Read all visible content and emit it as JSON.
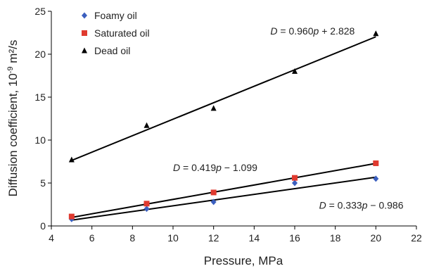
{
  "chart_data": {
    "type": "scatter",
    "xlabel": "Pressure, MPa",
    "ylabel_main": "Diffusion coefficient, 10",
    "ylabel_sup": "-9",
    "ylabel_unit": " m²/s",
    "xlim": [
      4,
      22
    ],
    "ylim": [
      0,
      25
    ],
    "xticks": [
      4,
      6,
      8,
      10,
      12,
      14,
      16,
      18,
      20,
      22
    ],
    "yticks": [
      0,
      5,
      10,
      15,
      20,
      25
    ],
    "grid": false,
    "legend_position": "top-left",
    "series": [
      {
        "name": "Foamy oil",
        "marker": "diamond",
        "color": "#3b5fbf",
        "x": [
          5,
          8.7,
          12,
          16,
          20
        ],
        "y": [
          0.8,
          2.0,
          2.8,
          5.0,
          5.5
        ],
        "fit": {
          "slope": 0.333,
          "intercept": -0.986,
          "x_range": [
            5,
            20
          ]
        }
      },
      {
        "name": "Saturated  oil",
        "marker": "square",
        "color": "#e03a2f",
        "x": [
          5,
          8.7,
          12,
          16,
          20
        ],
        "y": [
          1.1,
          2.6,
          3.9,
          5.6,
          7.3
        ],
        "fit": {
          "slope": 0.419,
          "intercept": -1.099,
          "x_range": [
            5,
            20
          ]
        }
      },
      {
        "name": "Dead oil",
        "marker": "triangle",
        "color": "#000000",
        "x": [
          5,
          8.7,
          12,
          16,
          20
        ],
        "y": [
          7.7,
          11.7,
          13.7,
          18.0,
          22.4
        ],
        "fit": {
          "slope": 0.96,
          "intercept": 2.828,
          "x_range": [
            5,
            20
          ]
        }
      }
    ],
    "annotations": [
      {
        "var": "D",
        "rest": " = 0.960",
        "pvar": "p",
        "tail": " + 2.828",
        "at": [
          14.8,
          22.3
        ]
      },
      {
        "var": "D",
        "rest": " = 0.419",
        "pvar": "p",
        "tail": " − 1.099",
        "at": [
          10.0,
          6.4
        ]
      },
      {
        "var": "D",
        "rest": " = 0.333",
        "pvar": "p",
        "tail": " − 0.986",
        "at": [
          17.2,
          2.0
        ]
      }
    ]
  }
}
